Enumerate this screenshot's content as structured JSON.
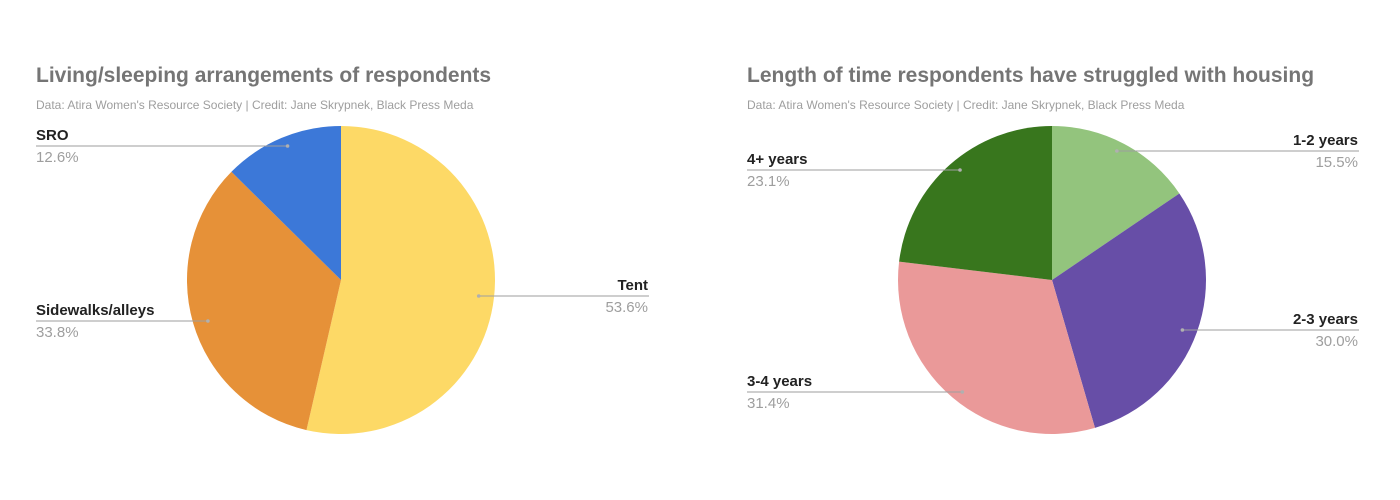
{
  "charts": [
    {
      "title": "Living/sleeping arrangements of respondents",
      "subtitle": "Data: Atira Women's Resource Society | Credit: Jane Skrypnek, Black Press Meda"
    },
    {
      "title": "Length of time respondents have struggled with housing",
      "subtitle": "Data: Atira Women's Resource Society | Credit: Jane Skrypnek, Black Press Meda"
    }
  ],
  "chart_data": [
    {
      "type": "pie",
      "title": "Living/sleeping arrangements of respondents",
      "slices": [
        {
          "label": "Tent",
          "value": 53.6,
          "display": "53.6%",
          "color": "#fdd966"
        },
        {
          "label": "Sidewalks/alleys",
          "value": 33.8,
          "display": "33.8%",
          "color": "#e69138"
        },
        {
          "label": "SRO",
          "value": 12.6,
          "display": "12.6%",
          "color": "#3c78d8"
        }
      ]
    },
    {
      "type": "pie",
      "title": "Length of time respondents have struggled with housing",
      "slices": [
        {
          "label": "1-2 years",
          "value": 15.5,
          "display": "15.5%",
          "color": "#93c47d"
        },
        {
          "label": "2-3 years",
          "value": 30.0,
          "display": "30.0%",
          "color": "#674ea7"
        },
        {
          "label": "3-4 years",
          "value": 31.4,
          "display": "31.4%",
          "color": "#ea9999"
        },
        {
          "label": "4+ years",
          "value": 23.1,
          "display": "23.1%",
          "color": "#38761d"
        }
      ]
    }
  ]
}
